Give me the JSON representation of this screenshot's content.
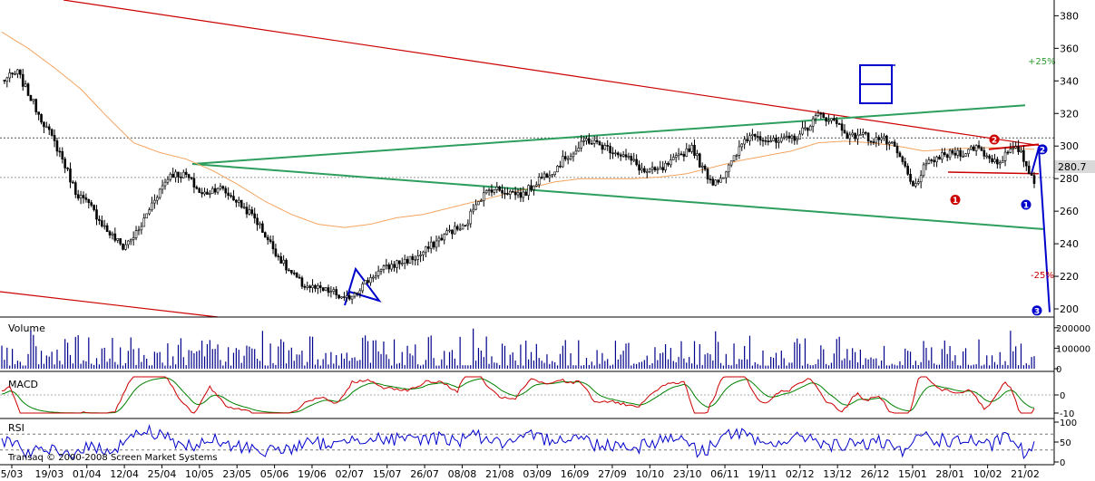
{
  "chart_data": [
    {
      "panel": "price",
      "type": "candlestick",
      "ylim": [
        195,
        388
      ],
      "yticks": [
        200,
        220,
        240,
        260,
        280,
        300,
        320,
        340,
        360,
        380
      ],
      "last_price_label": "280.7",
      "last_price": 280.7,
      "annotations": {
        "plus": "+25%",
        "minus": "-25%",
        "wave_labels": [
          "1",
          "2",
          "1",
          "2",
          "3"
        ]
      },
      "colors": {
        "up": "#000000",
        "ma": "#f4a460",
        "channel": "#cc0000",
        "triangle": "#2e9e5e",
        "wave": "#0000cc",
        "red_marker": "#cc0000"
      },
      "close_keypoints": [
        [
          0,
          340
        ],
        [
          6,
          345
        ],
        [
          14,
          320
        ],
        [
          22,
          296
        ],
        [
          28,
          272
        ],
        [
          34,
          262
        ],
        [
          40,
          248
        ],
        [
          46,
          238
        ],
        [
          52,
          248
        ],
        [
          58,
          268
        ],
        [
          64,
          283
        ],
        [
          70,
          282
        ],
        [
          76,
          270
        ],
        [
          82,
          275
        ],
        [
          88,
          268
        ],
        [
          96,
          256
        ],
        [
          102,
          240
        ],
        [
          108,
          225
        ],
        [
          114,
          215
        ],
        [
          120,
          212
        ],
        [
          126,
          210
        ],
        [
          130,
          205
        ],
        [
          136,
          213
        ],
        [
          142,
          222
        ],
        [
          150,
          228
        ],
        [
          158,
          232
        ],
        [
          164,
          240
        ],
        [
          170,
          248
        ],
        [
          176,
          250
        ],
        [
          180,
          266
        ],
        [
          186,
          274
        ],
        [
          192,
          272
        ],
        [
          198,
          270
        ],
        [
          204,
          280
        ],
        [
          210,
          286
        ],
        [
          214,
          293
        ],
        [
          218,
          297
        ],
        [
          222,
          304
        ],
        [
          228,
          300
        ],
        [
          234,
          296
        ],
        [
          240,
          290
        ],
        [
          244,
          284
        ],
        [
          250,
          285
        ],
        [
          256,
          292
        ],
        [
          262,
          300
        ],
        [
          266,
          286
        ],
        [
          270,
          278
        ],
        [
          274,
          282
        ],
        [
          278,
          292
        ],
        [
          282,
          304
        ],
        [
          286,
          308
        ],
        [
          290,
          304
        ],
        [
          294,
          302
        ],
        [
          298,
          304
        ],
        [
          302,
          306
        ],
        [
          306,
          312
        ],
        [
          310,
          319
        ],
        [
          314,
          317
        ],
        [
          318,
          313
        ],
        [
          322,
          305
        ],
        [
          326,
          308
        ],
        [
          330,
          304
        ],
        [
          334,
          305
        ],
        [
          338,
          300
        ],
        [
          342,
          290
        ],
        [
          344,
          282
        ],
        [
          346,
          274
        ],
        [
          350,
          286
        ],
        [
          354,
          292
        ],
        [
          358,
          294
        ],
        [
          362,
          296
        ],
        [
          366,
          296
        ],
        [
          370,
          300
        ],
        [
          374,
          294
        ],
        [
          378,
          290
        ],
        [
          382,
          296
        ],
        [
          386,
          298
        ],
        [
          388,
          292
        ],
        [
          390,
          284
        ],
        [
          392,
          279
        ]
      ],
      "moving_average_keypoints": [
        [
          0,
          370
        ],
        [
          10,
          360
        ],
        [
          20,
          348
        ],
        [
          30,
          335
        ],
        [
          40,
          318
        ],
        [
          50,
          302
        ],
        [
          60,
          296
        ],
        [
          70,
          292
        ],
        [
          80,
          285
        ],
        [
          90,
          276
        ],
        [
          100,
          266
        ],
        [
          110,
          258
        ],
        [
          120,
          252
        ],
        [
          130,
          250
        ],
        [
          140,
          252
        ],
        [
          150,
          256
        ],
        [
          160,
          258
        ],
        [
          170,
          262
        ],
        [
          180,
          266
        ],
        [
          190,
          270
        ],
        [
          200,
          274
        ],
        [
          210,
          278
        ],
        [
          220,
          280
        ],
        [
          230,
          280
        ],
        [
          240,
          280
        ],
        [
          250,
          281
        ],
        [
          260,
          283
        ],
        [
          270,
          287
        ],
        [
          280,
          291
        ],
        [
          290,
          294
        ],
        [
          300,
          297
        ],
        [
          310,
          302
        ],
        [
          320,
          303
        ],
        [
          330,
          302
        ],
        [
          340,
          300
        ],
        [
          350,
          297
        ],
        [
          360,
          298
        ],
        [
          370,
          299
        ],
        [
          380,
          299
        ],
        [
          392,
          298
        ]
      ]
    },
    {
      "panel": "volume",
      "type": "bar",
      "title": "Volume",
      "ylim": [
        0,
        230000
      ],
      "yticks": [
        0,
        100000,
        200000
      ],
      "ytick_labels": [
        "0",
        "100000",
        "200000"
      ],
      "color": "#00008b"
    },
    {
      "panel": "macd",
      "type": "line",
      "title": "MACD",
      "ylim": [
        -12,
        12
      ],
      "yticks": [
        -10,
        0
      ],
      "ytick_labels": [
        "-10",
        "0"
      ],
      "series": [
        {
          "color": "#cc0000"
        },
        {
          "color": "#008000"
        }
      ]
    },
    {
      "panel": "rsi",
      "type": "line",
      "title": "RSI",
      "ylim": [
        0,
        100
      ],
      "yticks": [
        0,
        50,
        100
      ],
      "ytick_labels": [
        "0",
        "50",
        "100"
      ],
      "color": "#0000cc"
    }
  ],
  "x_axis": {
    "tick_labels": [
      "5/03",
      "19/03",
      "01/04",
      "12/04",
      "25/04",
      "10/05",
      "23/05",
      "05/06",
      "19/06",
      "02/07",
      "15/07",
      "26/07",
      "08/08",
      "21/08",
      "03/09",
      "16/09",
      "27/09",
      "10/10",
      "23/10",
      "06/11",
      "19/11",
      "02/12",
      "13/12",
      "26/12",
      "15/01",
      "28/01",
      "10/02",
      "21/02"
    ]
  },
  "copyright": "Transaq © 2000-2008 Screen Market Systems"
}
